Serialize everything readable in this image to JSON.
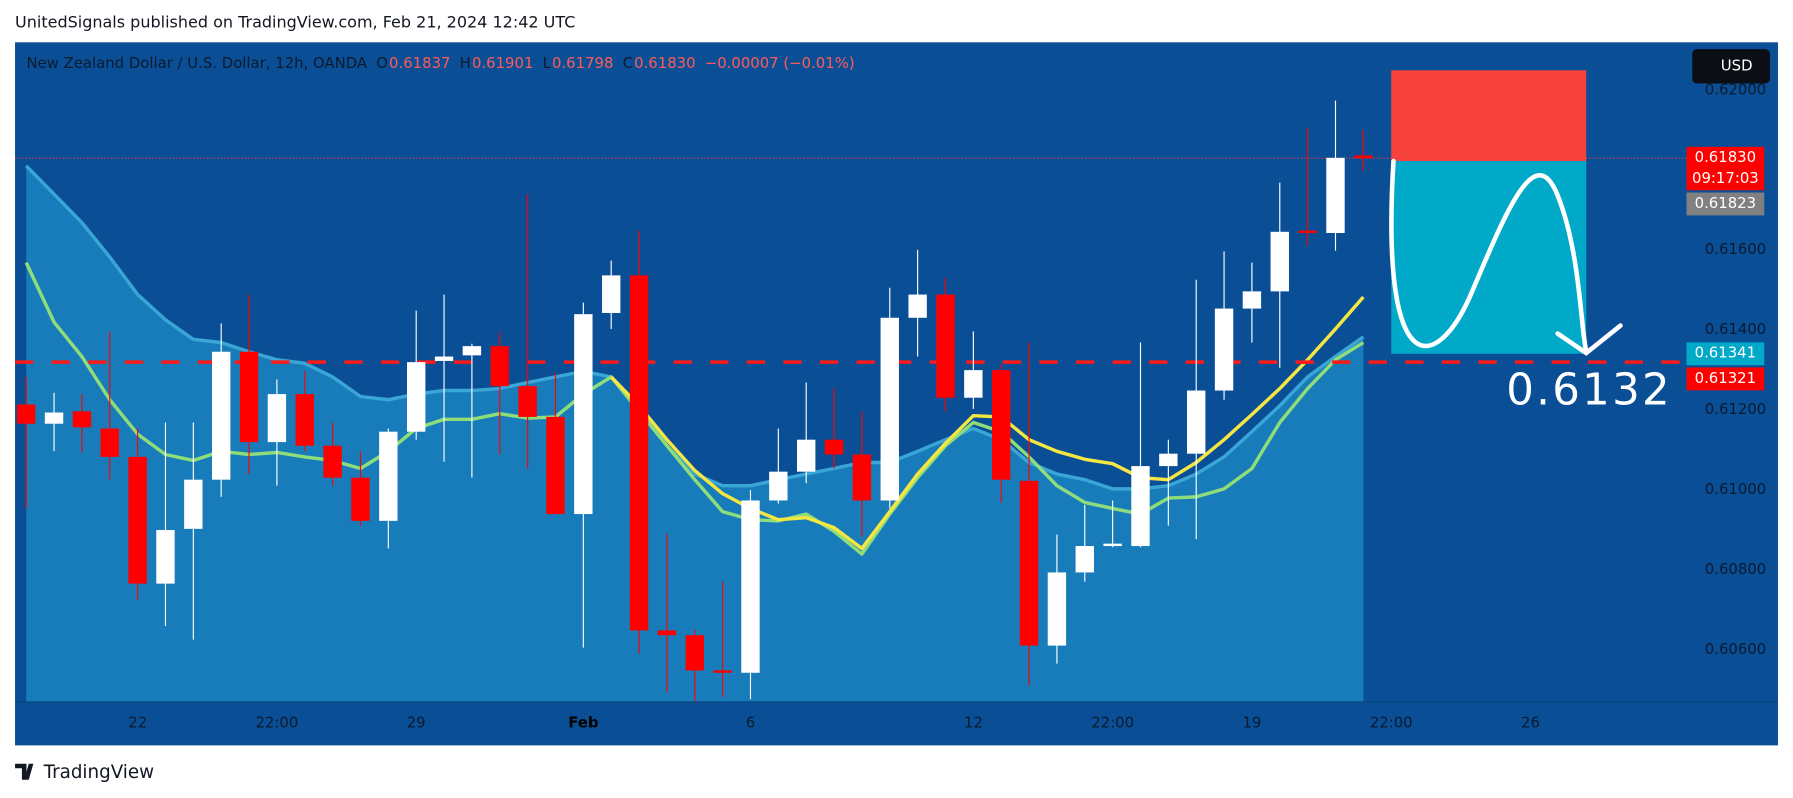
{
  "chart_data": {
    "type": "candlestick",
    "header": "UnitedSignals published on TradingView.com, Feb 21, 2024 12:42 UTC",
    "title": "New Zealand Dollar / U.S. Dollar, 12h, OANDA",
    "legend": {
      "o": "O",
      "open": 0.61837,
      "h": "H",
      "high": 0.61901,
      "l": "L",
      "low": 0.61798,
      "c": "C",
      "close": {
        "value": 0.6183,
        "label": "0.61830"
      },
      "change": "−0.00007 (−0.01%)"
    },
    "currency": "USD",
    "brand": "TradingView",
    "up_color": "#ffffff",
    "down_color": "#ff0000",
    "open": [
      0.61214,
      0.61166,
      0.61197,
      0.61154,
      0.61083,
      0.60766,
      0.60903,
      0.61026,
      0.61346,
      0.6112,
      0.6124,
      0.61111,
      0.61031,
      0.60923,
      0.61146,
      0.61323,
      0.61337,
      0.6136,
      0.6126,
      0.61183,
      0.6094,
      0.61443,
      0.61537,
      0.60649,
      0.60637,
      0.60549,
      0.60543,
      0.60974,
      0.61046,
      0.61126,
      0.61089,
      0.60974,
      0.61431,
      0.61489,
      0.61231,
      0.613,
      0.61023,
      0.60611,
      0.60794,
      0.6086,
      0.6086,
      0.6106,
      0.61091,
      0.61249,
      0.61454,
      0.61497,
      0.61649,
      0.61643,
      0.61837
    ],
    "high": [
      0.61283,
      0.61243,
      0.6124,
      0.61397,
      0.61154,
      0.61169,
      0.61169,
      0.61417,
      0.61489,
      0.61277,
      0.61297,
      0.61169,
      0.61097,
      0.61154,
      0.61449,
      0.61489,
      0.61366,
      0.61394,
      0.6174,
      0.61294,
      0.61469,
      0.61574,
      0.61649,
      0.60891,
      0.60651,
      0.60771,
      0.61,
      0.61154,
      0.61269,
      0.61254,
      0.61197,
      0.61506,
      0.61601,
      0.61531,
      0.61397,
      0.61314,
      0.61369,
      0.60889,
      0.60963,
      0.60974,
      0.61369,
      0.61126,
      0.61526,
      0.61597,
      0.61569,
      0.61769,
      0.61906,
      0.61974,
      0.61901
    ],
    "low": [
      0.60954,
      0.61097,
      0.61094,
      0.61026,
      0.60726,
      0.6066,
      0.60626,
      0.60983,
      0.6104,
      0.61011,
      0.61097,
      0.61011,
      0.60911,
      0.60854,
      0.61126,
      0.61071,
      0.61031,
      0.61089,
      0.61054,
      0.60949,
      0.60606,
      0.61403,
      0.60591,
      0.60494,
      0.60471,
      0.60483,
      0.60477,
      0.60966,
      0.61017,
      0.61054,
      0.60883,
      0.60954,
      0.61334,
      0.61197,
      0.61203,
      0.60969,
      0.60511,
      0.60566,
      0.60771,
      0.60857,
      0.60857,
      0.60911,
      0.60877,
      0.61226,
      0.61369,
      0.61306,
      0.61611,
      0.61599,
      0.61798
    ],
    "close": [
      0.61166,
      0.61194,
      0.61157,
      0.61083,
      0.60766,
      0.609,
      0.61026,
      0.61346,
      0.6112,
      0.6124,
      0.61111,
      0.61031,
      0.60923,
      0.61146,
      0.6132,
      0.61334,
      0.6136,
      0.6126,
      0.61183,
      0.6094,
      0.6144,
      0.61537,
      0.60649,
      0.60637,
      0.60549,
      0.60543,
      0.60974,
      0.61046,
      0.61126,
      0.61089,
      0.60974,
      0.61431,
      0.61489,
      0.61231,
      0.613,
      0.61026,
      0.60611,
      0.60794,
      0.6086,
      0.60866,
      0.6106,
      0.61091,
      0.61249,
      0.61454,
      0.61497,
      0.61646,
      0.61643,
      0.61831,
      0.6183
    ],
    "band": {
      "color": "#3aa6d6",
      "fill": "#1a84bf",
      "values": [
        0.61811,
        0.6174,
        0.61669,
        0.61583,
        0.61489,
        0.61426,
        0.61377,
        0.61369,
        0.61346,
        0.61326,
        0.61317,
        0.61283,
        0.61234,
        0.61226,
        0.6124,
        0.61249,
        0.61249,
        0.61254,
        0.61269,
        0.61283,
        0.61297,
        0.61283,
        0.61211,
        0.61111,
        0.6104,
        0.61011,
        0.61011,
        0.61026,
        0.6104,
        0.61054,
        0.61069,
        0.61069,
        0.61097,
        0.61126,
        0.61154,
        0.61126,
        0.61069,
        0.6104,
        0.61026,
        0.61003,
        0.61003,
        0.61011,
        0.6104,
        0.61083,
        0.61146,
        0.61211,
        0.61283,
        0.61334,
        0.61383
      ]
    },
    "series": [
      {
        "color": "#8fdc7a",
        "values": [
          0.61569,
          0.6142,
          0.61334,
          0.61226,
          0.6114,
          0.61089,
          0.61074,
          0.61097,
          0.61089,
          0.61094,
          0.61083,
          0.61074,
          0.61054,
          0.61097,
          0.61154,
          0.61177,
          0.61177,
          0.61191,
          0.6118,
          0.61183,
          0.6124,
          0.61283,
          0.61197,
          0.61111,
          0.61026,
          0.60946,
          0.60926,
          0.60923,
          0.6094,
          0.60897,
          0.6084,
          0.6094,
          0.61031,
          0.61111,
          0.61169,
          0.61146,
          0.61083,
          0.61011,
          0.60969,
          0.60954,
          0.6094,
          0.6098,
          0.60983,
          0.61003,
          0.61054,
          0.61169,
          0.61254,
          0.61326,
          0.61369
        ]
      },
      {
        "color": "#f5e642",
        "values": [
          null,
          null,
          null,
          null,
          null,
          null,
          null,
          null,
          null,
          null,
          null,
          null,
          null,
          null,
          null,
          null,
          null,
          null,
          null,
          null,
          null,
          0.61283,
          0.61211,
          0.61126,
          0.61049,
          0.60991,
          0.60954,
          0.60926,
          0.60931,
          0.60906,
          0.60854,
          0.60946,
          0.6104,
          0.61117,
          0.61186,
          0.61183,
          0.61126,
          0.61097,
          0.61077,
          0.61066,
          0.61031,
          0.61026,
          0.61069,
          0.61126,
          0.61189,
          0.61254,
          0.61326,
          0.61403,
          0.61483
        ]
      }
    ],
    "xlim": [
      -0.4,
      59.6
    ],
    "xticks": [
      {
        "value": 4,
        "label": "22"
      },
      {
        "value": 9,
        "label": "22:00"
      },
      {
        "value": 14,
        "label": "29"
      },
      {
        "value": 20,
        "label": "Feb"
      },
      {
        "value": 26,
        "label": "6"
      },
      {
        "value": 34,
        "label": "12"
      },
      {
        "value": 39,
        "label": "22:00"
      },
      {
        "value": 44,
        "label": "19"
      },
      {
        "value": 49,
        "label": "22:00"
      },
      {
        "value": 54,
        "label": "26"
      }
    ],
    "ylim": [
      0.6047,
      0.6212
    ],
    "yticks": [
      {
        "value": 0.606,
        "label": "0.60600"
      },
      {
        "value": 0.608,
        "label": "0.60800"
      },
      {
        "value": 0.61,
        "label": "0.61000"
      },
      {
        "value": 0.612,
        "label": "0.61200"
      },
      {
        "value": 0.614,
        "label": "0.61400"
      },
      {
        "value": 0.616,
        "label": "0.61600"
      },
      {
        "value": 0.62,
        "label": "0.62000"
      }
    ],
    "grid": false,
    "current_price": {
      "value": 0.6183,
      "color": "#f23645"
    },
    "target_line": {
      "value": 0.6132,
      "color": "#ff1a1a"
    },
    "position": {
      "start": 49,
      "end": 56,
      "stop": 0.6205,
      "entry": 0.61823,
      "target": 0.61341,
      "stop_color": "#f6423a",
      "target_color": "#00a9c8"
    },
    "price_labels": [
      {
        "value": 0.6183,
        "label": "0.61830",
        "color": "#ff0000",
        "countdown": "09:17:03"
      },
      {
        "value": 0.61823,
        "label": "0.61823",
        "color": "#808080"
      },
      {
        "value": 0.61341,
        "label": "0.61341",
        "color": "#00a9c8"
      },
      {
        "value": 0.61321,
        "label": "0.61321",
        "color": "#ff0000"
      }
    ]
  }
}
